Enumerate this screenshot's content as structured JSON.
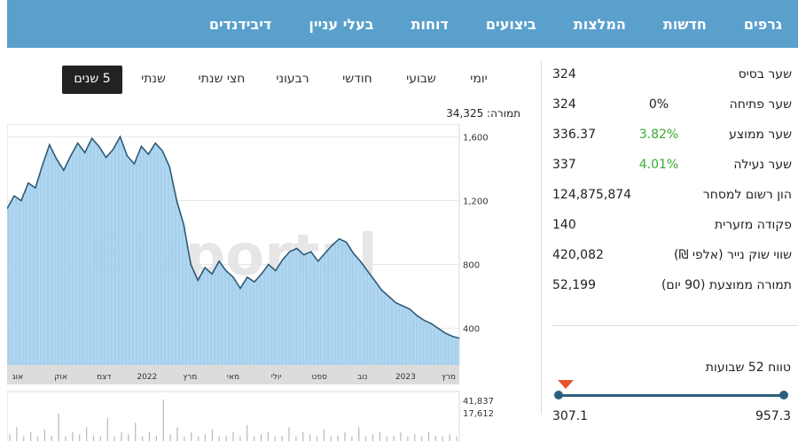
{
  "nav": {
    "items": [
      "גרפים",
      "חדשות",
      "המלצות",
      "ביצועים",
      "דוחות",
      "בעלי עניין",
      "דיבידנדים"
    ]
  },
  "stats": {
    "rows": [
      {
        "label": "שער בסיס",
        "change": "",
        "value": "324"
      },
      {
        "label": "שער פתיחה",
        "change": "0%",
        "value": "324"
      },
      {
        "label": "שער ממוצע",
        "change": "3.82%",
        "value": "336.37"
      },
      {
        "label": "שער נעילה",
        "change": "4.01%",
        "value": "337"
      },
      {
        "label": "הון רשום למסחר",
        "change": "",
        "value": "124,875,874"
      },
      {
        "label": "פקודה מזערית",
        "change": "",
        "value": "140"
      },
      {
        "label": "שווי שוק נייר (אלפי ₪)",
        "change": "",
        "value": "420,082"
      },
      {
        "label": "תמורה ממוצעת (90 יום)",
        "change": "",
        "value": "52,199"
      }
    ]
  },
  "range52": {
    "title": "טווח 52 שבועות",
    "min": "307.1",
    "max": "957.3",
    "position": 0.02
  },
  "tabs": {
    "items": [
      "יומי",
      "שבועי",
      "חודשי",
      "רבעוני",
      "חצי שנתי",
      "שנתי",
      "5 שנים"
    ],
    "active": "5 שנים"
  },
  "turnover": {
    "text": "תמורה: 34,325"
  },
  "chart_data": {
    "type": "area",
    "watermark": "Bizportal",
    "y_ticks": [
      "1,600",
      "1,200",
      "800",
      "400"
    ],
    "y_tick_values": [
      1600,
      1200,
      800,
      400
    ],
    "ylim": [
      170,
      1680
    ],
    "x_ticks": [
      "אוג",
      "אוק",
      "דצמ",
      "2022",
      "מרץ",
      "מאי",
      "יולי",
      "ספט",
      "נוב",
      "2023",
      "מרץ"
    ],
    "price": [
      1150,
      1230,
      1200,
      1310,
      1280,
      1420,
      1550,
      1460,
      1390,
      1480,
      1560,
      1500,
      1590,
      1540,
      1470,
      1520,
      1600,
      1480,
      1430,
      1540,
      1490,
      1560,
      1510,
      1410,
      1200,
      1050,
      800,
      700,
      780,
      740,
      820,
      760,
      720,
      650,
      720,
      690,
      740,
      800,
      760,
      830,
      880,
      900,
      860,
      880,
      820,
      870,
      920,
      960,
      940,
      870,
      820,
      760,
      700,
      640,
      600,
      560,
      540,
      520,
      480,
      450,
      430,
      400,
      370,
      350,
      337
    ],
    "volume_ticks": [
      "41,837",
      "17,612"
    ],
    "volume": [
      0.15,
      0.3,
      0.1,
      0.2,
      0.1,
      0.25,
      0.12,
      0.6,
      0.1,
      0.2,
      0.15,
      0.3,
      0.12,
      0.1,
      0.5,
      0.1,
      0.2,
      0.15,
      0.4,
      0.1,
      0.2,
      0.12,
      0.9,
      0.15,
      0.3,
      0.1,
      0.2,
      0.1,
      0.15,
      0.25,
      0.1,
      0.12,
      0.2,
      0.1,
      0.35,
      0.1,
      0.15,
      0.2,
      0.1,
      0.12,
      0.3,
      0.1,
      0.2,
      0.15,
      0.1,
      0.25,
      0.1,
      0.12,
      0.2,
      0.1,
      0.3,
      0.1,
      0.15,
      0.2,
      0.1,
      0.12,
      0.2,
      0.1,
      0.15,
      0.1,
      0.2,
      0.12,
      0.1,
      0.15,
      0.1
    ]
  }
}
